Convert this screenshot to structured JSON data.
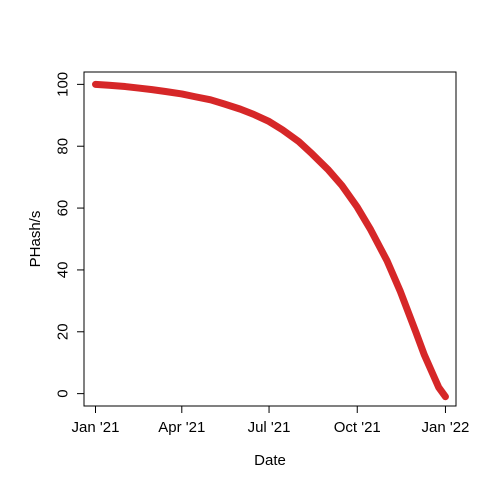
{
  "chart_data": {
    "type": "line",
    "title": "",
    "xlabel": "Date",
    "ylabel": "PHash/s",
    "x_ticks": [
      "2021-01-01",
      "2021-04-01",
      "2021-07-01",
      "2021-10-01",
      "2022-01-01"
    ],
    "x_tick_labels": [
      "Jan '21",
      "Apr '21",
      "Jul '21",
      "Oct '21",
      "Jan '22"
    ],
    "y_ticks": [
      0,
      20,
      40,
      60,
      80,
      100
    ],
    "y_tick_labels": [
      "0",
      "20",
      "40",
      "60",
      "80",
      "100"
    ],
    "xlim": [
      "2020-12-20",
      "2022-01-12"
    ],
    "ylim": [
      -4,
      104
    ],
    "grid": false,
    "series": [
      {
        "color": "#d62728",
        "x": [
          "2021-01-01",
          "2021-01-15",
          "2021-02-01",
          "2021-02-15",
          "2021-03-01",
          "2021-03-15",
          "2021-04-01",
          "2021-04-15",
          "2021-05-01",
          "2021-05-15",
          "2021-06-01",
          "2021-06-15",
          "2021-07-01",
          "2021-07-15",
          "2021-08-01",
          "2021-08-15",
          "2021-09-01",
          "2021-09-15",
          "2021-10-01",
          "2021-10-15",
          "2021-11-01",
          "2021-11-15",
          "2021-12-01",
          "2021-12-10",
          "2021-12-20",
          "2021-12-25",
          "2022-01-01"
        ],
        "y": [
          100,
          99.7,
          99.3,
          98.8,
          98.3,
          97.7,
          96.9,
          96.0,
          95.0,
          93.7,
          92.0,
          90.3,
          88.0,
          85.3,
          81.5,
          77.5,
          72.3,
          67.3,
          60.3,
          53.0,
          43.0,
          33.0,
          20.0,
          12.5,
          5.5,
          2.0,
          -1.0
        ]
      }
    ]
  }
}
